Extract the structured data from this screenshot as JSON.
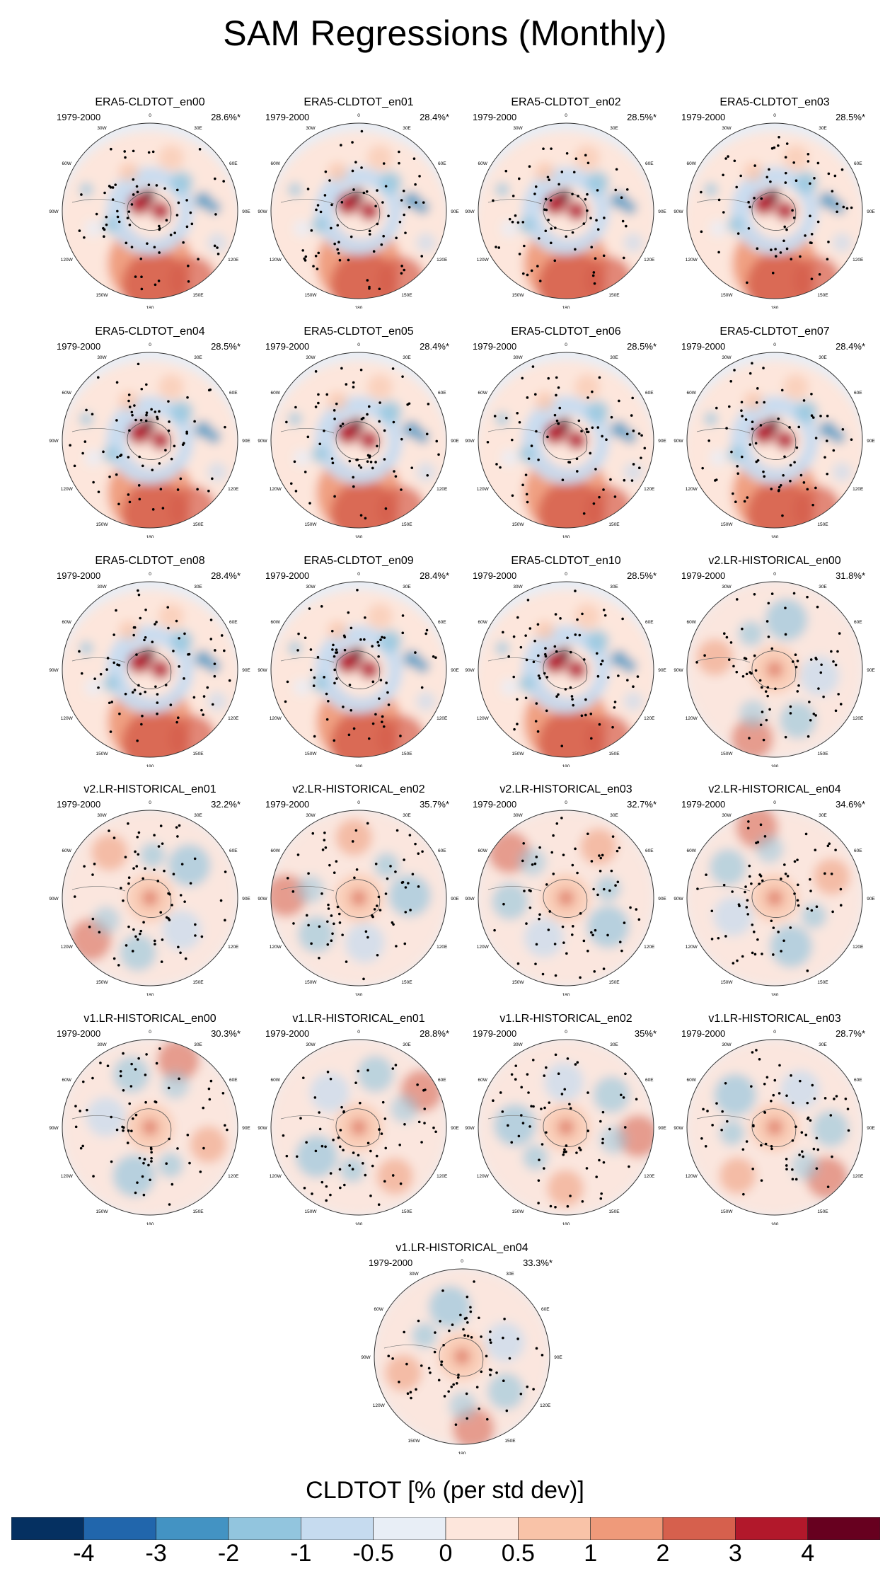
{
  "title": "SAM Regressions (Monthly)",
  "panels": [
    {
      "name": "ERA5-CLDTOT_en00",
      "period": "1979-2000",
      "pct": "28.6%*",
      "pattern": "era5"
    },
    {
      "name": "ERA5-CLDTOT_en01",
      "period": "1979-2000",
      "pct": "28.4%*",
      "pattern": "era5"
    },
    {
      "name": "ERA5-CLDTOT_en02",
      "period": "1979-2000",
      "pct": "28.5%*",
      "pattern": "era5"
    },
    {
      "name": "ERA5-CLDTOT_en03",
      "period": "1979-2000",
      "pct": "28.5%*",
      "pattern": "era5"
    },
    {
      "name": "ERA5-CLDTOT_en04",
      "period": "1979-2000",
      "pct": "28.5%*",
      "pattern": "era5"
    },
    {
      "name": "ERA5-CLDTOT_en05",
      "period": "1979-2000",
      "pct": "28.4%*",
      "pattern": "era5"
    },
    {
      "name": "ERA5-CLDTOT_en06",
      "period": "1979-2000",
      "pct": "28.5%*",
      "pattern": "era5"
    },
    {
      "name": "ERA5-CLDTOT_en07",
      "period": "1979-2000",
      "pct": "28.4%*",
      "pattern": "era5"
    },
    {
      "name": "ERA5-CLDTOT_en08",
      "period": "1979-2000",
      "pct": "28.4%*",
      "pattern": "era5"
    },
    {
      "name": "ERA5-CLDTOT_en09",
      "period": "1979-2000",
      "pct": "28.4%*",
      "pattern": "era5"
    },
    {
      "name": "ERA5-CLDTOT_en10",
      "period": "1979-2000",
      "pct": "28.5%*",
      "pattern": "era5"
    },
    {
      "name": "v2.LR-HISTORICAL_en00",
      "period": "1979-2000",
      "pct": "31.8%*",
      "pattern": "model"
    },
    {
      "name": "v2.LR-HISTORICAL_en01",
      "period": "1979-2000",
      "pct": "32.2%*",
      "pattern": "model"
    },
    {
      "name": "v2.LR-HISTORICAL_en02",
      "period": "1979-2000",
      "pct": "35.7%*",
      "pattern": "model"
    },
    {
      "name": "v2.LR-HISTORICAL_en03",
      "period": "1979-2000",
      "pct": "32.7%*",
      "pattern": "model"
    },
    {
      "name": "v2.LR-HISTORICAL_en04",
      "period": "1979-2000",
      "pct": "34.6%*",
      "pattern": "model"
    },
    {
      "name": "v1.LR-HISTORICAL_en00",
      "period": "1979-2000",
      "pct": "30.3%*",
      "pattern": "model"
    },
    {
      "name": "v1.LR-HISTORICAL_en01",
      "period": "1979-2000",
      "pct": "28.8%*",
      "pattern": "model"
    },
    {
      "name": "v1.LR-HISTORICAL_en02",
      "period": "1979-2000",
      "pct": "35%*",
      "pattern": "model"
    },
    {
      "name": "v1.LR-HISTORICAL_en03",
      "period": "1979-2000",
      "pct": "28.7%*",
      "pattern": "model"
    },
    {
      "name": "v1.LR-HISTORICAL_en04",
      "period": "1979-2000",
      "pct": "33.3%*",
      "pattern": "model"
    }
  ],
  "longitude_labels": [
    "0",
    "30E",
    "60E",
    "90E",
    "120E",
    "150E",
    "180",
    "150W",
    "120W",
    "90W",
    "60W",
    "30W"
  ],
  "colorbar": {
    "title": "CLDTOT [% (per std dev)]",
    "labels": [
      "-4",
      "-3",
      "-2",
      "-1",
      "-0.5",
      "0",
      "0.5",
      "1",
      "2",
      "3",
      "4"
    ],
    "colors": [
      "#053061",
      "#2166ac",
      "#4393c3",
      "#92c5de",
      "#c6dbef",
      "#e8eef6",
      "#fde6dc",
      "#f9c3a8",
      "#ef9a7a",
      "#d6604d",
      "#b2182b",
      "#67001f"
    ]
  },
  "chart_data": {
    "type": "heatmap",
    "title": "SAM Regressions (Monthly)",
    "variable": "CLDTOT [% (per std dev)]",
    "period": "1979-2000",
    "panels": [
      {
        "name": "ERA5-CLDTOT_en00",
        "pct": 28.6
      },
      {
        "name": "ERA5-CLDTOT_en01",
        "pct": 28.4
      },
      {
        "name": "ERA5-CLDTOT_en02",
        "pct": 28.5
      },
      {
        "name": "ERA5-CLDTOT_en03",
        "pct": 28.5
      },
      {
        "name": "ERA5-CLDTOT_en04",
        "pct": 28.5
      },
      {
        "name": "ERA5-CLDTOT_en05",
        "pct": 28.4
      },
      {
        "name": "ERA5-CLDTOT_en06",
        "pct": 28.5
      },
      {
        "name": "ERA5-CLDTOT_en07",
        "pct": 28.4
      },
      {
        "name": "ERA5-CLDTOT_en08",
        "pct": 28.4
      },
      {
        "name": "ERA5-CLDTOT_en09",
        "pct": 28.4
      },
      {
        "name": "ERA5-CLDTOT_en10",
        "pct": 28.5
      },
      {
        "name": "v2.LR-HISTORICAL_en00",
        "pct": 31.8
      },
      {
        "name": "v2.LR-HISTORICAL_en01",
        "pct": 32.2
      },
      {
        "name": "v2.LR-HISTORICAL_en02",
        "pct": 35.7
      },
      {
        "name": "v2.LR-HISTORICAL_en03",
        "pct": 32.7
      },
      {
        "name": "v2.LR-HISTORICAL_en04",
        "pct": 34.6
      },
      {
        "name": "v1.LR-HISTORICAL_en00",
        "pct": 30.3
      },
      {
        "name": "v1.LR-HISTORICAL_en01",
        "pct": 28.8
      },
      {
        "name": "v1.LR-HISTORICAL_en02",
        "pct": 35
      },
      {
        "name": "v1.LR-HISTORICAL_en03",
        "pct": 28.7
      },
      {
        "name": "v1.LR-HISTORICAL_en04",
        "pct": 33.3
      }
    ],
    "color_levels": [
      -4,
      -3,
      -2,
      -1,
      -0.5,
      0,
      0.5,
      1,
      2,
      3,
      4
    ]
  }
}
